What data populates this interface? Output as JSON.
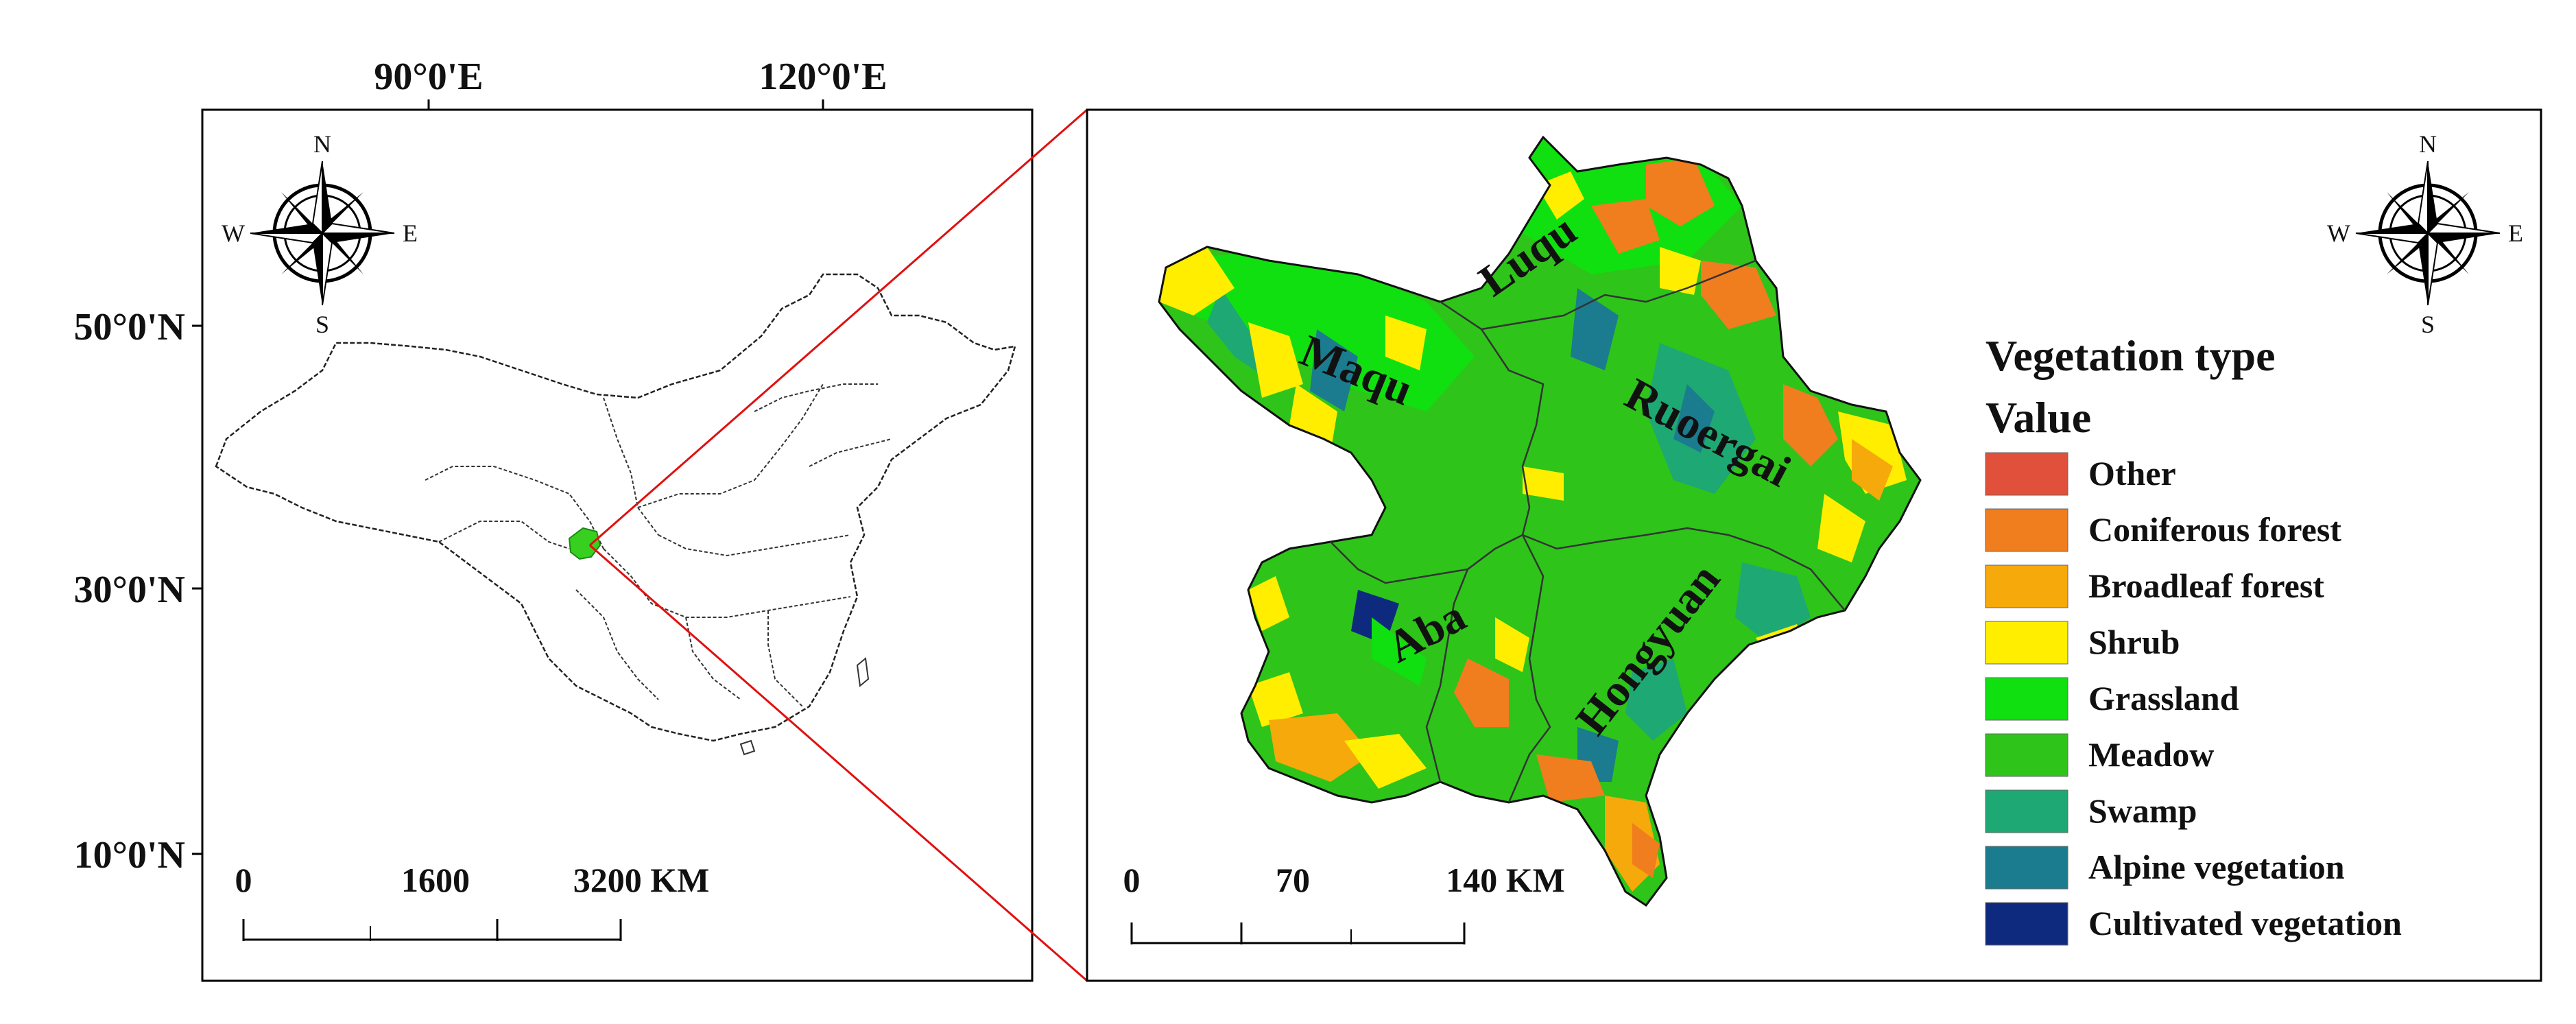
{
  "overview_map": {
    "longitude_labels": [
      "90°0'E",
      "120°0'E"
    ],
    "latitude_labels": [
      "50°0'N",
      "30°0'N",
      "10°0'N"
    ],
    "scale_bar": {
      "ticks": [
        "0",
        "1600",
        "3200 KM"
      ]
    },
    "compass": {
      "north": "N",
      "south": "S",
      "east": "E",
      "west": "W"
    }
  },
  "detail_map": {
    "counties": [
      "Luqu",
      "Maqu",
      "Ruoergai",
      "Aba",
      "Hongyuan"
    ],
    "scale_bar": {
      "ticks": [
        "0",
        "70",
        "140 KM"
      ]
    },
    "compass": {
      "north": "N",
      "south": "S",
      "east": "E",
      "west": "W"
    }
  },
  "legend": {
    "title": "Vegetation type",
    "subtitle": "Value",
    "items": [
      {
        "label": "Other",
        "color": "#E0503A"
      },
      {
        "label": "Coniferous forest",
        "color": "#F07D1E"
      },
      {
        "label": "Broadleaf forest",
        "color": "#F6A90A"
      },
      {
        "label": "Shrub",
        "color": "#FFEE00"
      },
      {
        "label": "Grassland",
        "color": "#10E010"
      },
      {
        "label": "Meadow",
        "color": "#2EC41A"
      },
      {
        "label": "Swamp",
        "color": "#1EA874"
      },
      {
        "label": "Alpine vegetation",
        "color": "#1A7C8E"
      },
      {
        "label": "Cultivated vegetation",
        "color": "#0E2A7E"
      }
    ]
  }
}
